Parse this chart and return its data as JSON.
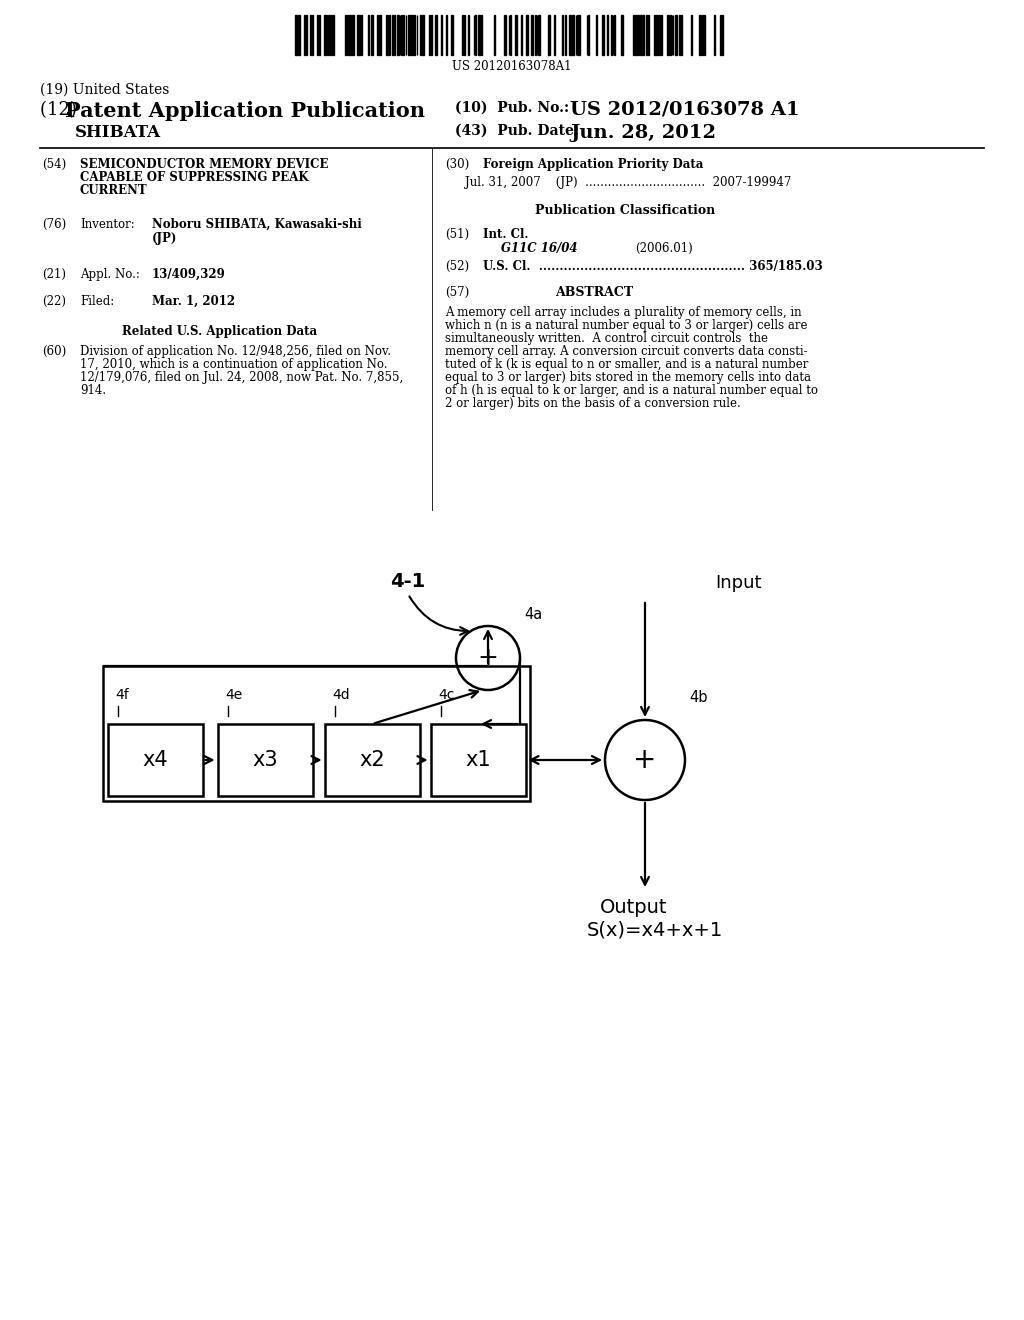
{
  "background_color": "#ffffff",
  "barcode_text": "US 20120163078A1",
  "header_19": "(19) United States",
  "header_12_prefix": "(12) ",
  "header_12_main": "Patent Application Publication",
  "header_10_label": "(10)  Pub. No.:",
  "header_10_value": "US 2012/0163078 A1",
  "header_43_label": "(43)  Pub. Date:",
  "header_43_value": "Jun. 28, 2012",
  "inventor_name": "SHIBATA",
  "field_54_label": "(54)",
  "field_54_line1": "SEMICONDUCTOR MEMORY DEVICE",
  "field_54_line2": "CAPABLE OF SUPPRESSING PEAK",
  "field_54_line3": "CURRENT",
  "field_76_label": "(76)",
  "field_76_title": "Inventor:",
  "field_76_value1": "Noboru SHIBATA, Kawasaki-shi",
  "field_76_value2": "(JP)",
  "field_21_label": "(21)",
  "field_21_title": "Appl. No.:",
  "field_21_value": "13/409,329",
  "field_22_label": "(22)",
  "field_22_title": "Filed:",
  "field_22_value": "Mar. 1, 2012",
  "related_title": "Related U.S. Application Data",
  "field_60_label": "(60)",
  "field_60_lines": [
    "Division of application No. 12/948,256, filed on Nov.",
    "17, 2010, which is a continuation of application No.",
    "12/179,076, filed on Jul. 24, 2008, now Pat. No. 7,855,",
    "914."
  ],
  "field_30_label": "(30)",
  "field_30_title": "Foreign Application Priority Data",
  "field_30_value": "Jul. 31, 2007    (JP)  ................................  2007-199947",
  "pub_class_title": "Publication Classification",
  "field_51_label": "(51)",
  "field_51_title": "Int. Cl.",
  "field_51_sub": "G11C 16/04",
  "field_51_year": "(2006.01)",
  "field_52_label": "(52)",
  "field_52_value": "U.S. Cl.  .................................................. 365/185.03",
  "field_57_label": "(57)",
  "field_57_title": "ABSTRACT",
  "abstract_lines": [
    "A memory cell array includes a plurality of memory cells, in",
    "which n (n is a natural number equal to 3 or larger) cells are",
    "simultaneously written.  A control circuit controls  the",
    "memory cell array. A conversion circuit converts data consti-",
    "tuted of k (k is equal to n or smaller, and is a natural number",
    "equal to 3 or larger) bits stored in the memory cells into data",
    "of h (h is equal to k or larger, and is a natural number equal to",
    "2 or larger) bits on the basis of a conversion rule."
  ],
  "diagram_label": "4-1",
  "box_labels": [
    "x4",
    "x3",
    "x2",
    "x1"
  ],
  "box_ref_labels": [
    "4f",
    "4e",
    "4d",
    "4c"
  ],
  "circle_4a_label": "4a",
  "circle_4b_label": "4b",
  "input_label": "Input",
  "output_line1": "Output",
  "output_line2": "S(x)=x4+x+1"
}
